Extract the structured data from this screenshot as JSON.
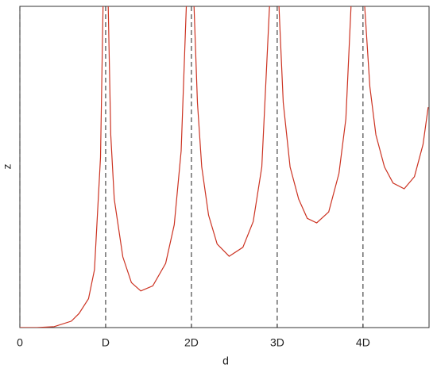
{
  "chart_data": {
    "type": "line",
    "xlabel": "d",
    "ylabel": "z",
    "x": [
      0,
      0.2,
      0.4,
      0.6,
      0.69,
      0.8,
      0.87,
      0.94,
      0.97,
      null,
      1.03,
      1.06,
      1.1,
      1.2,
      1.3,
      1.41,
      1.55,
      1.7,
      1.8,
      1.88,
      1.94,
      null,
      2.03,
      2.07,
      2.12,
      2.2,
      2.3,
      2.44,
      2.6,
      2.72,
      2.82,
      2.91,
      null,
      3.02,
      3.07,
      3.15,
      3.25,
      3.35,
      3.46,
      3.6,
      3.72,
      3.8,
      3.86,
      null,
      4.02,
      4.08,
      4.15,
      4.25,
      4.35,
      4.48,
      4.6,
      4.7,
      4.76
    ],
    "series": [
      {
        "color": "#cc3322",
        "values": [
          0,
          0,
          0.003,
          0.02,
          0.044,
          0.09,
          0.18,
          0.53,
          1.0,
          null,
          1.0,
          0.6,
          0.4,
          0.22,
          0.14,
          0.114,
          0.13,
          0.2,
          0.32,
          0.55,
          1.0,
          null,
          1.0,
          0.7,
          0.5,
          0.35,
          0.26,
          0.222,
          0.25,
          0.33,
          0.5,
          1.0,
          null,
          1.0,
          0.7,
          0.5,
          0.4,
          0.34,
          0.326,
          0.36,
          0.48,
          0.65,
          1.0,
          null,
          1.0,
          0.75,
          0.6,
          0.5,
          0.45,
          0.432,
          0.47,
          0.57,
          0.686
        ]
      }
    ],
    "xlim": [
      0,
      4.77
    ],
    "ylim": [
      0,
      1
    ],
    "xticks": [
      0,
      {
        "value": 1,
        "label": "D"
      },
      {
        "value": 2,
        "label": "2D"
      },
      {
        "value": 3,
        "label": "3D"
      },
      {
        "value": 4,
        "label": "4D"
      }
    ],
    "grid": true
  }
}
